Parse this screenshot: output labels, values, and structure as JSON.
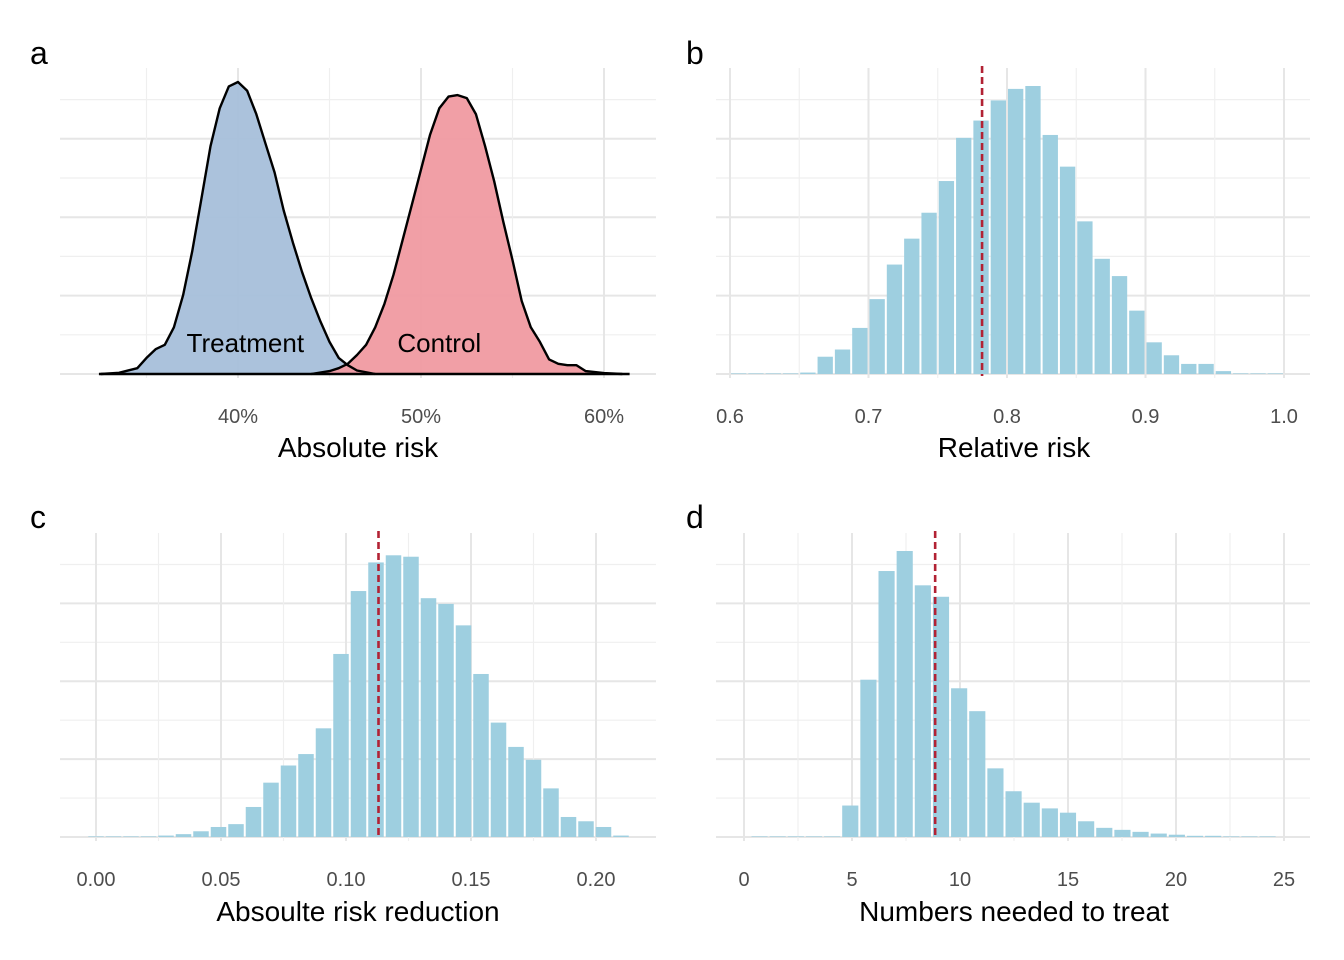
{
  "chart_data": [
    {
      "panel": "a",
      "type": "area",
      "xlabel": "Absolute risk",
      "xlim": [
        0.32,
        0.615
      ],
      "ticks": [
        0.4,
        0.5,
        0.6
      ],
      "tick_labels": [
        "40%",
        "50%",
        "60%"
      ],
      "grid": true,
      "series": [
        {
          "name": "Treatment",
          "color": "#A7BFDA",
          "x": [
            0.325,
            0.335,
            0.345,
            0.35,
            0.355,
            0.36,
            0.365,
            0.37,
            0.375,
            0.38,
            0.385,
            0.39,
            0.395,
            0.4,
            0.405,
            0.41,
            0.415,
            0.42,
            0.425,
            0.43,
            0.435,
            0.44,
            0.445,
            0.45,
            0.455,
            0.46,
            0.465,
            0.475
          ],
          "y": [
            0.0,
            0.004,
            0.02,
            0.055,
            0.085,
            0.1,
            0.16,
            0.27,
            0.42,
            0.6,
            0.78,
            0.91,
            0.985,
            1.0,
            0.97,
            0.89,
            0.79,
            0.69,
            0.56,
            0.45,
            0.35,
            0.26,
            0.18,
            0.11,
            0.055,
            0.03,
            0.012,
            0.0
          ]
        },
        {
          "name": "Control",
          "color": "#F09AA1",
          "x": [
            0.44,
            0.45,
            0.455,
            0.46,
            0.465,
            0.47,
            0.475,
            0.48,
            0.485,
            0.49,
            0.495,
            0.5,
            0.505,
            0.51,
            0.515,
            0.52,
            0.525,
            0.53,
            0.535,
            0.54,
            0.545,
            0.55,
            0.555,
            0.56,
            0.565,
            0.57,
            0.575,
            0.58,
            0.585,
            0.59,
            0.6,
            0.61
          ],
          "y": [
            0.0,
            0.01,
            0.02,
            0.035,
            0.065,
            0.1,
            0.16,
            0.24,
            0.34,
            0.46,
            0.58,
            0.7,
            0.82,
            0.91,
            0.95,
            0.955,
            0.945,
            0.89,
            0.78,
            0.66,
            0.52,
            0.39,
            0.25,
            0.16,
            0.11,
            0.05,
            0.035,
            0.03,
            0.03,
            0.01,
            0.003,
            0.0
          ]
        }
      ],
      "annotations": [
        {
          "text": "Treatment",
          "x": 0.404
        },
        {
          "text": "Control",
          "x": 0.51
        }
      ]
    },
    {
      "panel": "b",
      "type": "bar",
      "xlabel": "Relative risk",
      "xlim": [
        0.6,
        1.0
      ],
      "ticks": [
        0.6,
        0.7,
        0.8,
        0.9,
        1.0
      ],
      "tick_labels": [
        "0.6",
        "0.7",
        "0.8",
        "0.9",
        "1.0"
      ],
      "bin_start": 0.6,
      "bin_width": 0.0125,
      "values": [
        0,
        0,
        0,
        0,
        0.005,
        0.06,
        0.085,
        0.16,
        0.26,
        0.38,
        0.47,
        0.56,
        0.67,
        0.82,
        0.88,
        0.95,
        0.99,
        1.0,
        0.83,
        0.72,
        0.53,
        0.4,
        0.34,
        0.22,
        0.11,
        0.065,
        0.035,
        0.035,
        0.01,
        0,
        0,
        0
      ],
      "vline": 0.782,
      "bar_color": "#9ECFE0",
      "vline_color": "#B22234",
      "grid": true
    },
    {
      "panel": "c",
      "type": "bar",
      "xlabel": "Absoulte risk reduction",
      "xlim": [
        0.0,
        0.21
      ],
      "ticks": [
        0.0,
        0.05,
        0.1,
        0.15,
        0.2
      ],
      "tick_labels": [
        "0.00",
        "0.05",
        "0.10",
        "0.15",
        "0.20"
      ],
      "bin_start": -0.0035,
      "bin_width": 0.007,
      "values": [
        0.0,
        0.0,
        0.0,
        0.0,
        0.005,
        0.01,
        0.02,
        0.035,
        0.045,
        0.105,
        0.19,
        0.25,
        0.29,
        0.38,
        0.64,
        0.86,
        0.96,
        0.985,
        0.98,
        0.835,
        0.815,
        0.74,
        0.57,
        0.4,
        0.315,
        0.27,
        0.17,
        0.07,
        0.055,
        0.035,
        0.005
      ],
      "vline": 0.113,
      "bar_color": "#9ECFE0",
      "vline_color": "#B22234",
      "grid": true
    },
    {
      "panel": "d",
      "type": "bar",
      "xlabel": "Numbers needed to treat",
      "xlim": [
        0,
        25
      ],
      "ticks": [
        0,
        5,
        10,
        15,
        20,
        25
      ],
      "tick_labels": [
        "0",
        "5",
        "10",
        "15",
        "20",
        "25"
      ],
      "bin_start": 0.3,
      "bin_width": 0.84,
      "values": [
        0.0,
        0.0,
        0.0,
        0.0,
        0.0,
        0.11,
        0.55,
        0.93,
        1.0,
        0.88,
        0.84,
        0.52,
        0.44,
        0.24,
        0.16,
        0.12,
        0.1,
        0.085,
        0.055,
        0.032,
        0.025,
        0.018,
        0.012,
        0.008,
        0.004,
        0.002,
        0.0,
        0.0,
        0.0
      ],
      "vline": 8.85,
      "bar_color": "#9ECFE0",
      "vline_color": "#B22234",
      "grid": true
    }
  ]
}
